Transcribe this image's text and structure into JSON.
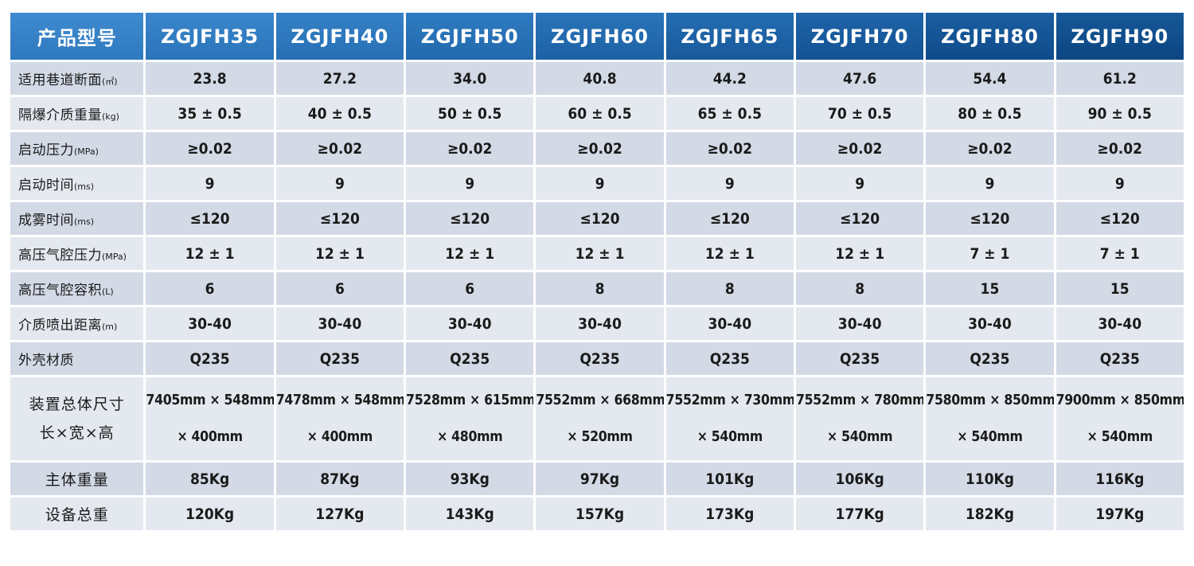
{
  "header": {
    "first": "产品型号",
    "models": [
      "ZGJFH35",
      "ZGJFH40",
      "ZGJFH50",
      "ZGJFH60",
      "ZGJFH65",
      "ZGJFH70",
      "ZGJFH80",
      "ZGJFH90"
    ]
  },
  "rows": [
    {
      "label": "适用巷道断面",
      "unit": "(㎡)",
      "values": [
        "23.8",
        "27.2",
        "34.0",
        "40.8",
        "44.2",
        "47.6",
        "54.4",
        "61.2"
      ]
    },
    {
      "label": "隔爆介质重量",
      "unit": "(kg)",
      "values": [
        "35 ± 0.5",
        "40 ± 0.5",
        "50 ± 0.5",
        "60 ± 0.5",
        "65 ± 0.5",
        "70 ± 0.5",
        "80 ± 0.5",
        "90 ± 0.5"
      ]
    },
    {
      "label": "启动压力",
      "unit": "(MPa)",
      "values": [
        "≥0.02",
        "≥0.02",
        "≥0.02",
        "≥0.02",
        "≥0.02",
        "≥0.02",
        "≥0.02",
        "≥0.02"
      ]
    },
    {
      "label": "启动时间",
      "unit": "(ms)",
      "values": [
        "9",
        "9",
        "9",
        "9",
        "9",
        "9",
        "9",
        "9"
      ]
    },
    {
      "label": "成雾时间",
      "unit": "(ms)",
      "values": [
        "≤120",
        "≤120",
        "≤120",
        "≤120",
        "≤120",
        "≤120",
        "≤120",
        "≤120"
      ]
    },
    {
      "label": "高压气腔压力",
      "unit": "(MPa)",
      "values": [
        "12 ± 1",
        "12 ± 1",
        "12 ± 1",
        "12 ± 1",
        "12 ± 1",
        "12 ± 1",
        "7 ± 1",
        "7 ± 1"
      ]
    },
    {
      "label": "高压气腔容积",
      "unit": "(L)",
      "values": [
        "6",
        "6",
        "6",
        "8",
        "8",
        "8",
        "15",
        "15"
      ]
    },
    {
      "label": "介质喷出距离",
      "unit": "(m)",
      "values": [
        "30-40",
        "30-40",
        "30-40",
        "30-40",
        "30-40",
        "30-40",
        "30-40",
        "30-40"
      ]
    },
    {
      "label": "外壳材质",
      "unit": "",
      "values": [
        "Q235",
        "Q235",
        "Q235",
        "Q235",
        "Q235",
        "Q235",
        "Q235",
        "Q235"
      ]
    }
  ],
  "dimensions": {
    "label_line1": "装置总体尺寸",
    "label_line2": "长×宽×高",
    "values": [
      {
        "line1": "7405mm × 548mm",
        "line2": "× 400mm"
      },
      {
        "line1": "7478mm × 548mm",
        "line2": "× 400mm"
      },
      {
        "line1": "7528mm × 615mm",
        "line2": "× 480mm"
      },
      {
        "line1": "7552mm × 668mm",
        "line2": "× 520mm"
      },
      {
        "line1": "7552mm × 730mm",
        "line2": "× 540mm"
      },
      {
        "line1": "7552mm × 780mm",
        "line2": "× 540mm"
      },
      {
        "line1": "7580mm × 850mm",
        "line2": "× 540mm"
      },
      {
        "line1": "7900mm × 850mm",
        "line2": "× 540mm"
      }
    ]
  },
  "weights": [
    {
      "label": "主体重量",
      "values": [
        "85Kg",
        "87Kg",
        "93Kg",
        "97Kg",
        "101Kg",
        "106Kg",
        "110Kg",
        "116Kg"
      ]
    },
    {
      "label": "设备总重",
      "values": [
        "120Kg",
        "127Kg",
        "143Kg",
        "157Kg",
        "173Kg",
        "177Kg",
        "182Kg",
        "197Kg"
      ]
    }
  ]
}
